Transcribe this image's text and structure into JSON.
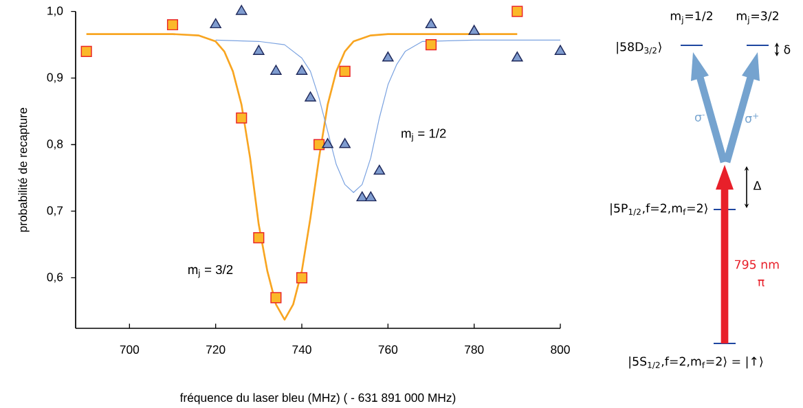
{
  "chart_data": {
    "type": "scatter",
    "xlabel": "fréquence du laser bleu (MHz) ( - 631 891 000 MHz)",
    "ylabel": "probabilité de recapture",
    "xlim": [
      687.5,
      800
    ],
    "ylim": [
      0.524,
      1.0
    ],
    "xticks": [
      700,
      720,
      740,
      760,
      780,
      800
    ],
    "yticks": [
      {
        "value": 0.6,
        "label": "0,6"
      },
      {
        "value": 0.7,
        "label": "0,7"
      },
      {
        "value": 0.8,
        "label": "0,8"
      },
      {
        "value": 0.9,
        "label": "0,9"
      },
      {
        "value": 1.0,
        "label": "1,0"
      }
    ],
    "series": [
      {
        "marker": "square",
        "color": "#fbb829",
        "x": [
          690,
          710,
          726,
          730,
          734,
          740,
          744,
          750,
          770,
          790
        ],
        "values": [
          0.94,
          0.98,
          0.84,
          0.66,
          0.57,
          0.6,
          0.8,
          0.91,
          0.95,
          1.0
        ]
      },
      {
        "marker": "triangle",
        "color": "#7f9ccf",
        "x": [
          720,
          726,
          730,
          734,
          740,
          742,
          746,
          750,
          754,
          756,
          758,
          760,
          770,
          780,
          790,
          800
        ],
        "values": [
          0.98,
          1.0,
          0.94,
          0.91,
          0.91,
          0.87,
          0.8,
          0.8,
          0.72,
          0.72,
          0.76,
          0.93,
          0.98,
          0.97,
          0.93,
          0.94
        ]
      },
      {
        "type": "line",
        "color": "#f8a521",
        "x": [
          690,
          710,
          716,
          720,
          722,
          724,
          726,
          728,
          730,
          732,
          734,
          736,
          738,
          740,
          742,
          744,
          746,
          748,
          750,
          752,
          756,
          760,
          790
        ],
        "values": [
          0.966,
          0.966,
          0.964,
          0.955,
          0.94,
          0.91,
          0.86,
          0.78,
          0.68,
          0.61,
          0.56,
          0.537,
          0.56,
          0.61,
          0.69,
          0.78,
          0.86,
          0.91,
          0.94,
          0.955,
          0.964,
          0.966,
          0.966
        ]
      },
      {
        "type": "line",
        "color": "#7aa2e0",
        "x": [
          720,
          730,
          736,
          740,
          742,
          744,
          746,
          748,
          750,
          752,
          754,
          756,
          758,
          760,
          762,
          764,
          768,
          780,
          800
        ],
        "values": [
          0.957,
          0.955,
          0.95,
          0.93,
          0.91,
          0.87,
          0.82,
          0.77,
          0.74,
          0.728,
          0.74,
          0.78,
          0.84,
          0.89,
          0.92,
          0.94,
          0.955,
          0.957,
          0.957
        ]
      }
    ],
    "annotations": [
      "m$_{j}$ = 3/2",
      "m$_{j}$ = 1/2",
      "m$_{j}$=1/2",
      "m$_{j}$=3/2",
      "|58D$_{3/2}$⟩",
      "δ",
      "σ$^{-}$",
      "σ$^{+}$",
      "Δ",
      "|5P$_{1/2}$,f=2,m$_{f}$=2⟩",
      "795 nm",
      "π",
      "|5S$_{1/2}$,f=2,m$_{f}$=2⟩ = |↑⟩"
    ]
  }
}
